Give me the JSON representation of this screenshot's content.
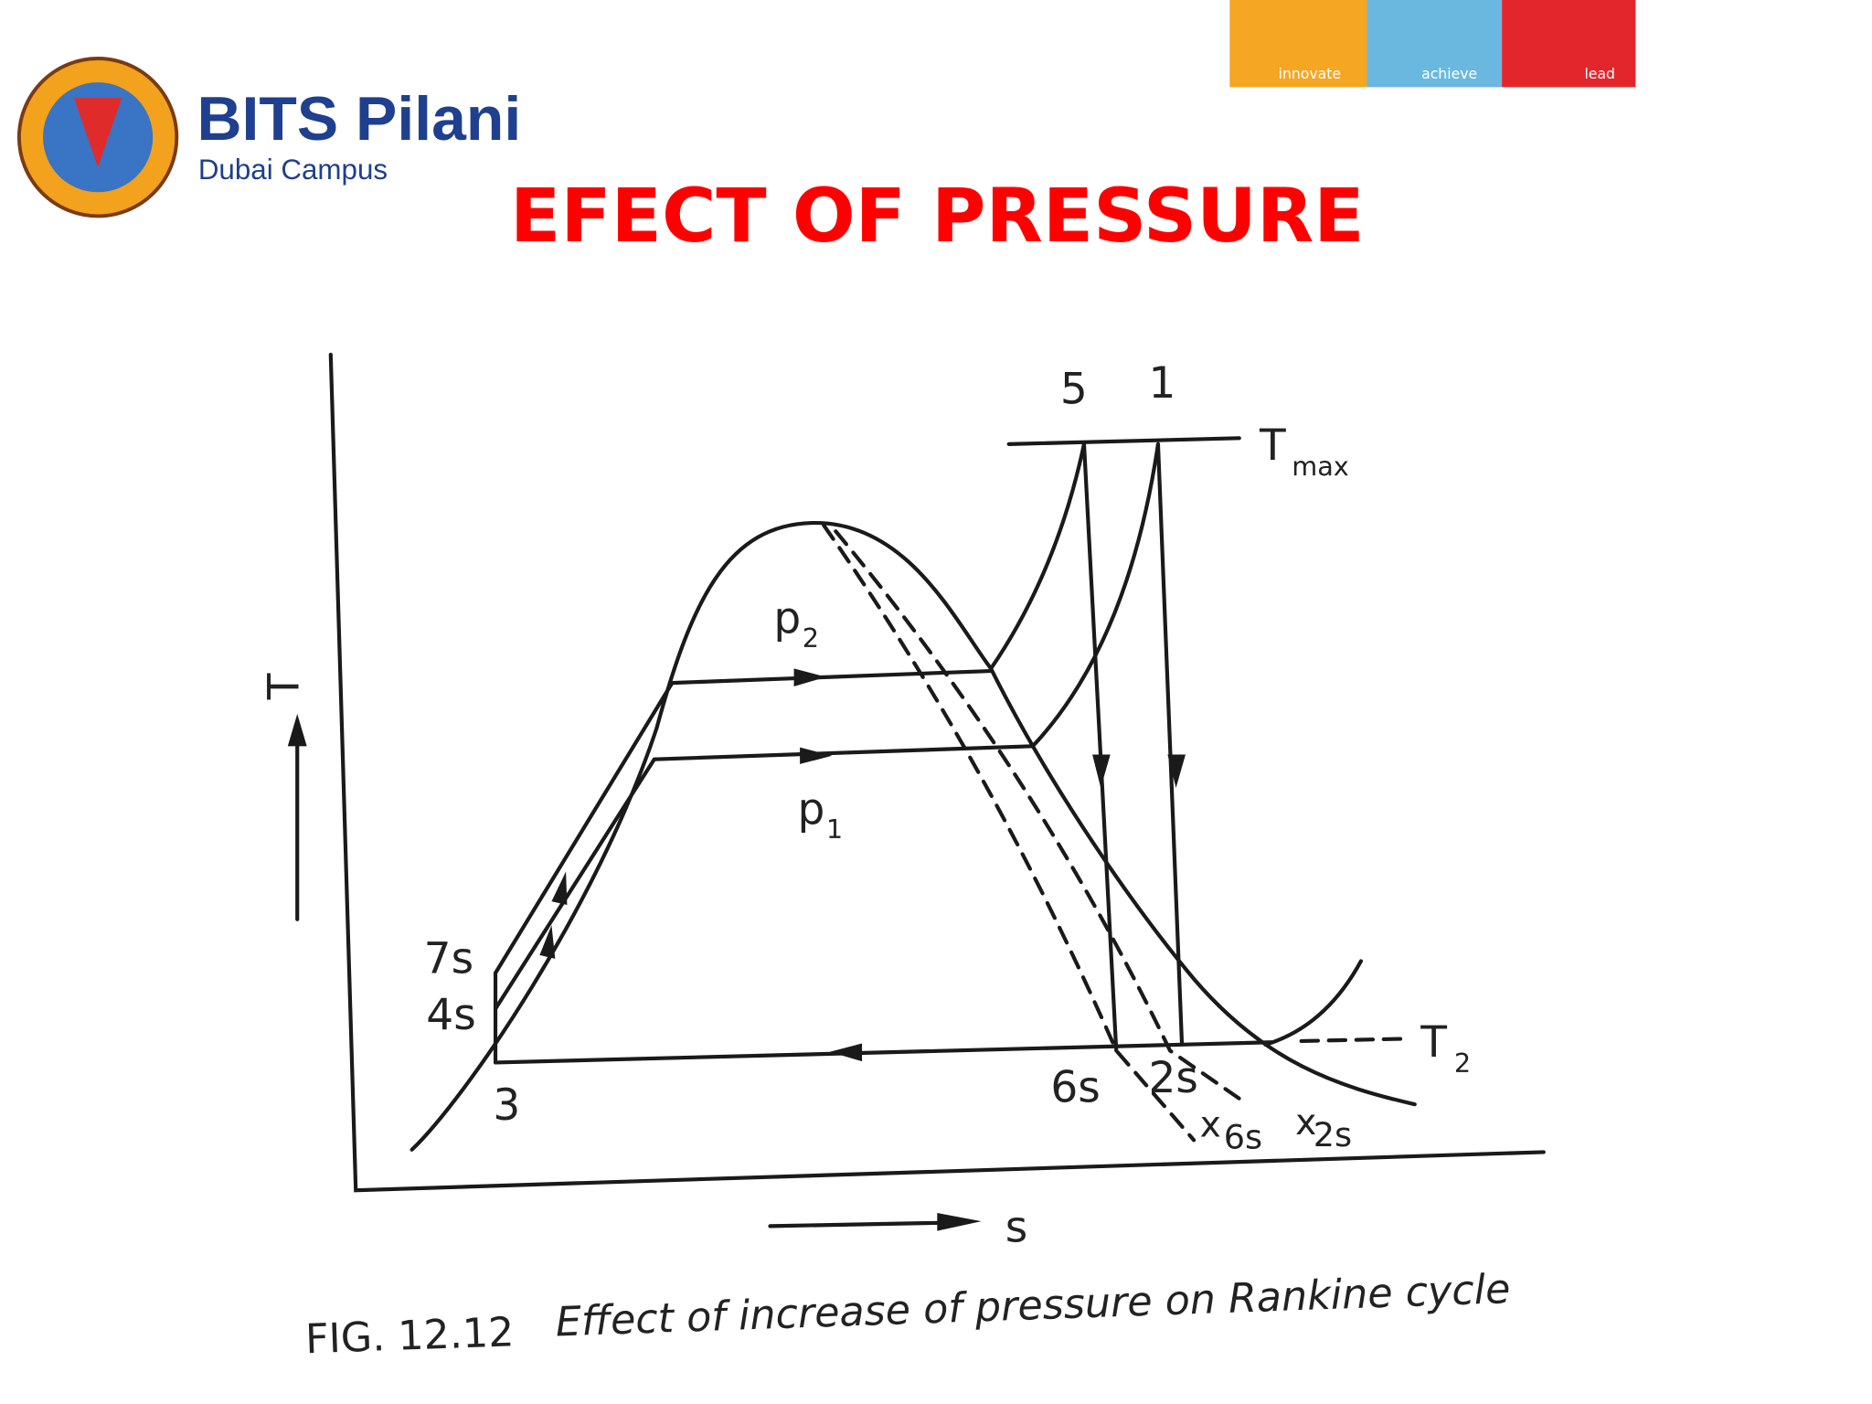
{
  "header": {
    "logo_title": "BITS Pilani",
    "logo_subtitle": "Dubai Campus",
    "banner": [
      "innovate",
      "achieve",
      "lead"
    ]
  },
  "title": "EFECT OF PRESSURE",
  "diagram": {
    "axis_y": "T",
    "axis_x": "s",
    "labels": {
      "p5": "5",
      "p1": "1",
      "tmax": "T",
      "tmax_sub": "max",
      "pressure2": "p",
      "pressure2_sub": "2",
      "pressure1": "p",
      "pressure1_sub": "1",
      "s7": "7s",
      "s4": "4s",
      "s3": "3",
      "s6": "6s",
      "s2": "2s",
      "x6": "x",
      "x6_sub": "6s",
      "x2": "x",
      "x2_sub": "2s",
      "t2": "T",
      "t2_sub": "2"
    },
    "caption_number": "FIG. 12.12",
    "caption_text": "Effect of increase of pressure on Rankine cycle"
  }
}
